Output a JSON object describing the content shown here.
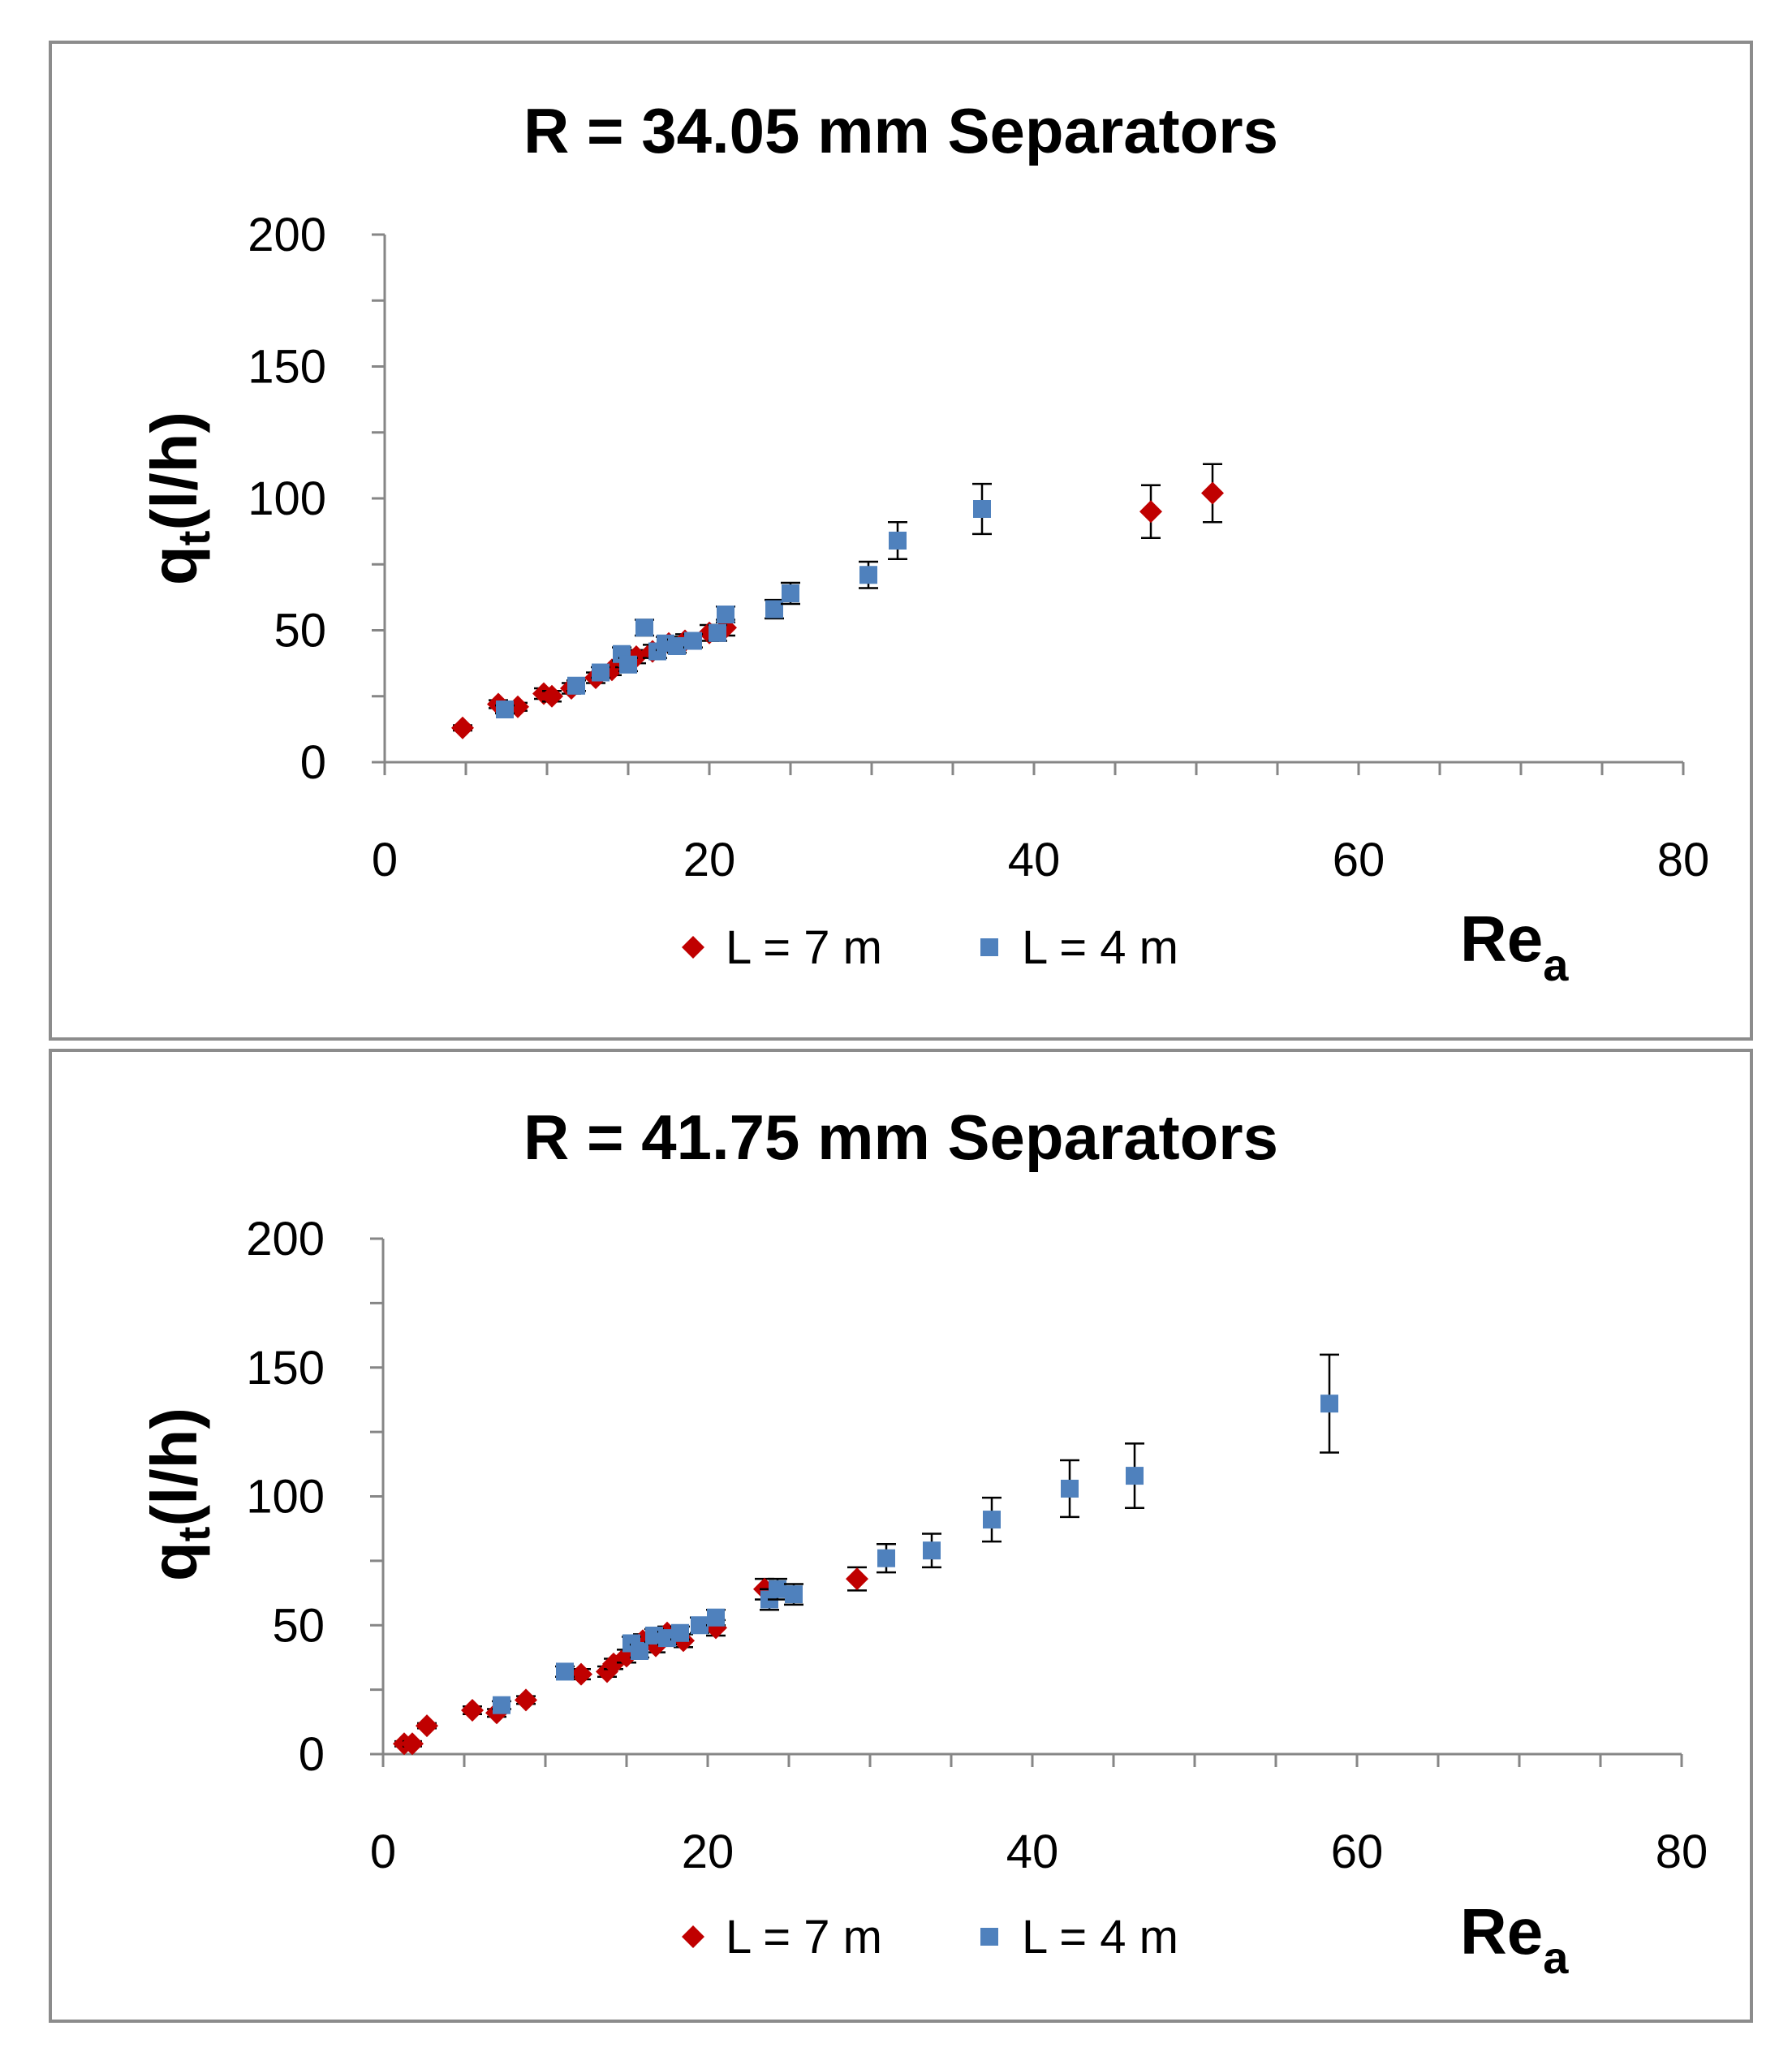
{
  "chart_data": [
    {
      "type": "scatter",
      "title": "R = 34.05 mm Separators",
      "ylabel_main": "q",
      "ylabel_sub": "t",
      "ylabel_rest": "(l/h)",
      "xlabel_main": "Re",
      "xlabel_sub": "a",
      "xlim": [
        0,
        80
      ],
      "ylim": [
        0,
        200
      ],
      "x_ticks": [
        "0",
        "20",
        "40",
        "60",
        "80"
      ],
      "y_ticks": [
        "0",
        "50",
        "100",
        "150",
        "200"
      ],
      "legend": "bottom-center",
      "grid": false,
      "series": [
        {
          "name": "L = 7 m",
          "marker": "diamond",
          "color": "#c00000",
          "points": [
            [
              4.8,
              13,
              1
            ],
            [
              7,
              22,
              1.5
            ],
            [
              8.2,
              21,
              1.5
            ],
            [
              9.8,
              26,
              2
            ],
            [
              10.3,
              25,
              2
            ],
            [
              11.5,
              28,
              2
            ],
            [
              13,
              32,
              2
            ],
            [
              14,
              35,
              2
            ],
            [
              14.8,
              38,
              2
            ],
            [
              15.5,
              40,
              2.5
            ],
            [
              16.5,
              42,
              2.5
            ],
            [
              17.5,
              45,
              2.5
            ],
            [
              18.5,
              46,
              2.5
            ],
            [
              20,
              49,
              3
            ],
            [
              21,
              51,
              3
            ],
            [
              47.2,
              95,
              10
            ],
            [
              51,
              102,
              11
            ]
          ]
        },
        {
          "name": "L = 4 m",
          "marker": "square",
          "color": "#4f81bd",
          "points": [
            [
              7.4,
              20,
              1.5
            ],
            [
              11.8,
              29,
              2
            ],
            [
              13.3,
              34,
              2
            ],
            [
              14.6,
              41,
              2.5
            ],
            [
              15,
              37,
              2.5
            ],
            [
              16,
              51,
              3
            ],
            [
              16.8,
              42,
              2.5
            ],
            [
              17.3,
              45,
              2.5
            ],
            [
              18,
              44,
              2.5
            ],
            [
              19,
              46,
              2.5
            ],
            [
              20.5,
              49,
              3
            ],
            [
              21,
              56,
              3
            ],
            [
              24,
              58,
              3.5
            ],
            [
              25,
              64,
              4
            ],
            [
              29.8,
              71,
              5
            ],
            [
              31.6,
              84,
              7
            ],
            [
              36.8,
              96,
              9.5
            ]
          ]
        }
      ]
    },
    {
      "type": "scatter",
      "title": "R = 41.75 mm Separators",
      "ylabel_main": "q",
      "ylabel_sub": "t",
      "ylabel_rest": "(l/h)",
      "xlabel_main": "Re",
      "xlabel_sub": "a",
      "xlim": [
        0,
        80
      ],
      "ylim": [
        0,
        200
      ],
      "x_ticks": [
        "0",
        "20",
        "40",
        "60",
        "80"
      ],
      "y_ticks": [
        "0",
        "50",
        "100",
        "150",
        "200"
      ],
      "legend": "bottom-center",
      "grid": false,
      "series": [
        {
          "name": "L = 7 m",
          "marker": "diamond",
          "color": "#c00000",
          "points": [
            [
              1.3,
              4,
              1
            ],
            [
              1.8,
              4,
              1
            ],
            [
              2.7,
              11,
              1
            ],
            [
              5.5,
              17,
              1.5
            ],
            [
              7,
              16,
              1.5
            ],
            [
              8.8,
              21,
              1.5
            ],
            [
              12.2,
              31,
              2
            ],
            [
              13.8,
              32,
              2
            ],
            [
              14.2,
              35,
              2
            ],
            [
              15,
              38,
              2.5
            ],
            [
              16,
              44,
              2.5
            ],
            [
              16.8,
              42,
              2.5
            ],
            [
              17.5,
              47,
              2.5
            ],
            [
              18.5,
              44,
              2.5
            ],
            [
              20.5,
              49,
              3
            ],
            [
              23.5,
              64,
              4
            ],
            [
              29.2,
              68,
              4.5
            ]
          ]
        },
        {
          "name": "L = 4 m",
          "marker": "square",
          "color": "#4f81bd",
          "points": [
            [
              7.3,
              19,
              1.5
            ],
            [
              11.2,
              32,
              2
            ],
            [
              15.3,
              43,
              2.5
            ],
            [
              15.8,
              40,
              2.5
            ],
            [
              16.7,
              46,
              2.5
            ],
            [
              17.5,
              45,
              2.5
            ],
            [
              18.3,
              47,
              2.5
            ],
            [
              19.5,
              50,
              3
            ],
            [
              20.5,
              53,
              3
            ],
            [
              23.8,
              60,
              4
            ],
            [
              24.3,
              64,
              4
            ],
            [
              25.3,
              62,
              4
            ],
            [
              31,
              76,
              5.5
            ],
            [
              33.8,
              79,
              6.5
            ],
            [
              37.5,
              91,
              8.5
            ],
            [
              42.3,
              103,
              11
            ],
            [
              46.3,
              108,
              12.5
            ],
            [
              58.3,
              136,
              19
            ]
          ]
        }
      ]
    }
  ]
}
